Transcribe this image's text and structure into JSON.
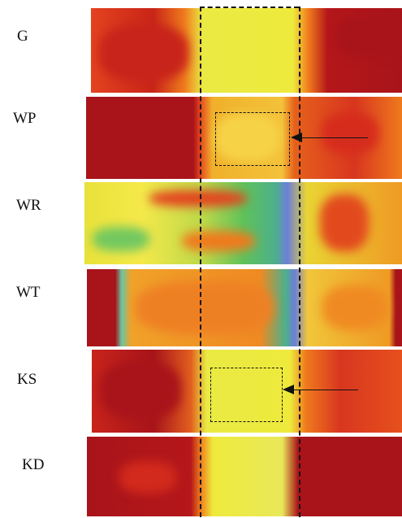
{
  "rows": [
    {
      "label": "G"
    },
    {
      "label": "WP"
    },
    {
      "label": "WR"
    },
    {
      "label": "WT"
    },
    {
      "label": "KS"
    },
    {
      "label": "KD"
    }
  ],
  "colors": {
    "dark_red": "#a8141a",
    "red": "#d8361f",
    "orange": "#ef7a1d",
    "yellow": "#eeea3c",
    "light_yellow": "#e9e85a",
    "green": "#5fc25a",
    "teal": "#4db08a",
    "blue": "#6c7fd8"
  }
}
